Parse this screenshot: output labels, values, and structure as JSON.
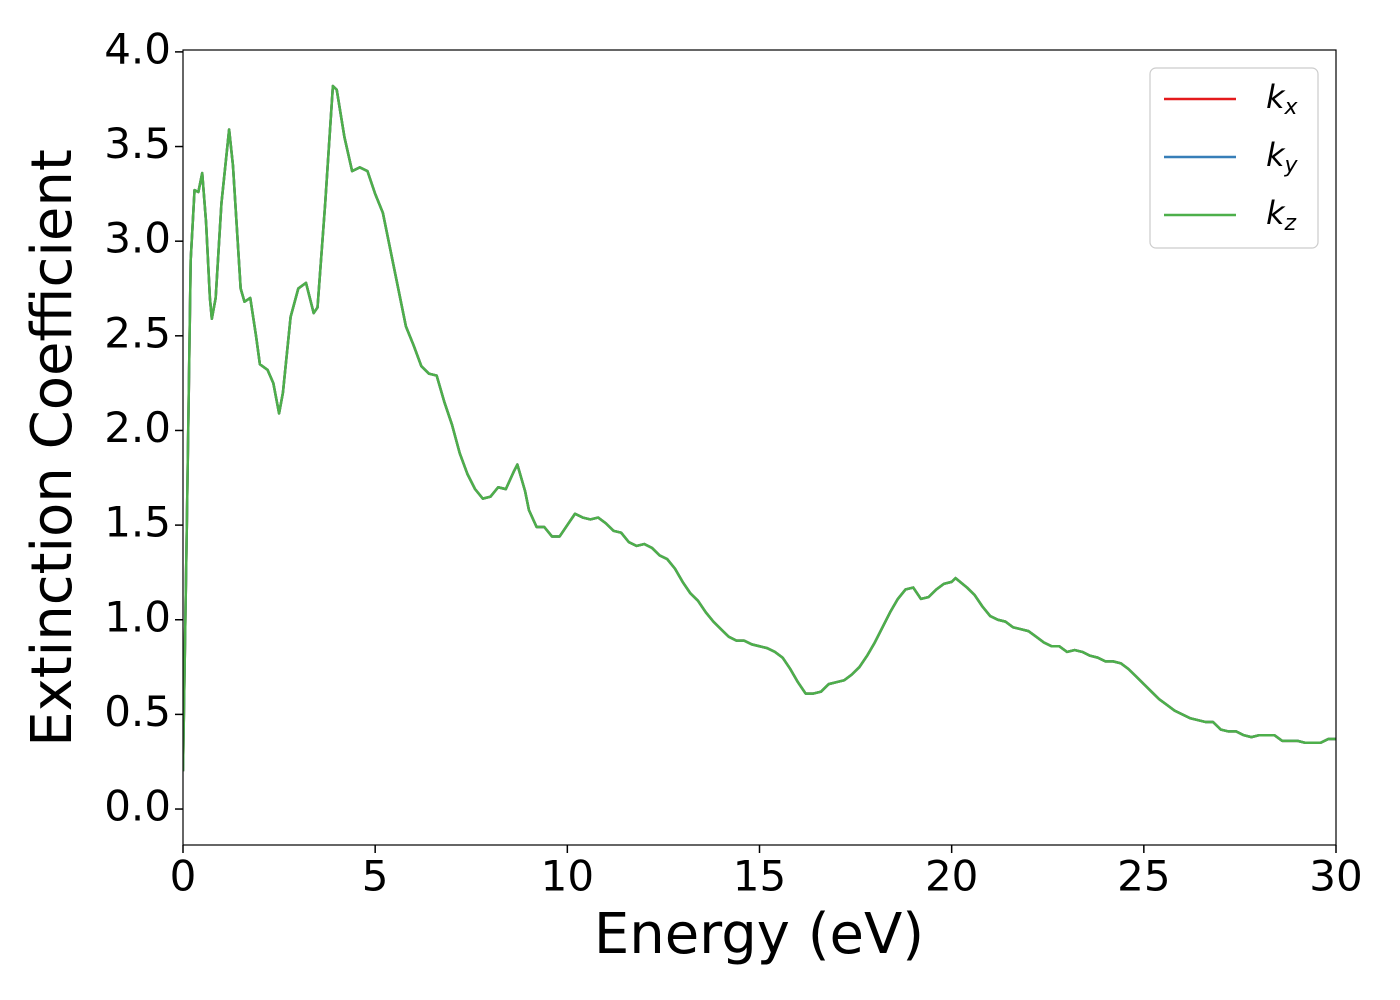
{
  "chart_data": {
    "type": "line",
    "xlabel": "Energy (eV)",
    "ylabel": "Extinction Coefficient",
    "xlim": [
      0,
      30
    ],
    "ylim": [
      -0.19,
      4.01
    ],
    "xticks": [
      0,
      5,
      10,
      15,
      20,
      25,
      30
    ],
    "yticks": [
      {
        "value": 0,
        "label": "0.0"
      },
      {
        "value": 0.5,
        "label": "0.5"
      },
      {
        "value": 1,
        "label": "1.0"
      },
      {
        "value": 1.5,
        "label": "1.5"
      },
      {
        "value": 2,
        "label": "2.0"
      },
      {
        "value": 2.5,
        "label": "2.5"
      },
      {
        "value": 3,
        "label": "3.0"
      },
      {
        "value": 3.5,
        "label": "3.5"
      },
      {
        "value": 4,
        "label": "4.0"
      }
    ],
    "legend": "upper right",
    "x": [
      0,
      0.1,
      0.2,
      0.3,
      0.4,
      0.5,
      0.6,
      0.7,
      0.75,
      0.85,
      1.0,
      1.2,
      1.3,
      1.5,
      1.6,
      1.75,
      1.9,
      2.0,
      2.2,
      2.35,
      2.5,
      2.6,
      2.8,
      3.0,
      3.2,
      3.4,
      3.5,
      3.7,
      3.9,
      4.0,
      4.2,
      4.4,
      4.6,
      4.8,
      5.0,
      5.2,
      5.4,
      5.6,
      5.8,
      6.0,
      6.2,
      6.4,
      6.6,
      6.8,
      7.0,
      7.2,
      7.4,
      7.6,
      7.8,
      8.0,
      8.2,
      8.4,
      8.6,
      8.7,
      8.9,
      9.0,
      9.2,
      9.4,
      9.6,
      9.8,
      10.0,
      10.2,
      10.4,
      10.6,
      10.8,
      11.0,
      11.2,
      11.4,
      11.6,
      11.8,
      12.0,
      12.2,
      12.4,
      12.6,
      12.8,
      13.0,
      13.2,
      13.4,
      13.6,
      13.8,
      14.0,
      14.2,
      14.4,
      14.6,
      14.8,
      15.0,
      15.2,
      15.4,
      15.6,
      15.8,
      16.0,
      16.2,
      16.4,
      16.6,
      16.8,
      17.0,
      17.2,
      17.4,
      17.6,
      17.8,
      18.0,
      18.2,
      18.4,
      18.6,
      18.8,
      19.0,
      19.2,
      19.4,
      19.6,
      19.8,
      20.0,
      20.1,
      20.4,
      20.6,
      20.8,
      21.0,
      21.2,
      21.4,
      21.6,
      21.8,
      22.0,
      22.2,
      22.4,
      22.6,
      22.8,
      23.0,
      23.2,
      23.4,
      23.6,
      23.8,
      24.0,
      24.2,
      24.4,
      24.6,
      24.8,
      25.0,
      25.2,
      25.4,
      25.6,
      25.8,
      26.0,
      26.2,
      26.4,
      26.6,
      26.8,
      27.0,
      27.2,
      27.4,
      27.6,
      27.8,
      28.0,
      28.2,
      28.4,
      28.6,
      28.8,
      29.0,
      29.2,
      29.4,
      29.6,
      29.8,
      30.0
    ],
    "series": [
      {
        "name": "kx",
        "color": "#e41a1c",
        "values": [
          0.2,
          1.5,
          2.9,
          3.27,
          3.26,
          3.36,
          3.1,
          2.7,
          2.59,
          2.7,
          3.2,
          3.59,
          3.4,
          2.75,
          2.68,
          2.7,
          2.5,
          2.35,
          2.32,
          2.25,
          2.09,
          2.2,
          2.6,
          2.75,
          2.78,
          2.62,
          2.65,
          3.2,
          3.82,
          3.8,
          3.55,
          3.37,
          3.39,
          3.37,
          3.25,
          3.15,
          2.95,
          2.75,
          2.55,
          2.45,
          2.34,
          2.3,
          2.29,
          2.15,
          2.03,
          1.88,
          1.77,
          1.69,
          1.64,
          1.65,
          1.7,
          1.69,
          1.78,
          1.82,
          1.68,
          1.58,
          1.49,
          1.49,
          1.44,
          1.44,
          1.5,
          1.56,
          1.54,
          1.53,
          1.54,
          1.51,
          1.47,
          1.46,
          1.41,
          1.39,
          1.4,
          1.38,
          1.34,
          1.32,
          1.27,
          1.2,
          1.14,
          1.1,
          1.04,
          0.99,
          0.95,
          0.91,
          0.89,
          0.89,
          0.87,
          0.86,
          0.85,
          0.83,
          0.8,
          0.74,
          0.67,
          0.61,
          0.61,
          0.62,
          0.66,
          0.67,
          0.68,
          0.71,
          0.75,
          0.81,
          0.88,
          0.96,
          1.04,
          1.11,
          1.16,
          1.17,
          1.11,
          1.12,
          1.16,
          1.19,
          1.2,
          1.22,
          1.17,
          1.13,
          1.07,
          1.02,
          1.0,
          0.99,
          0.96,
          0.95,
          0.94,
          0.91,
          0.88,
          0.86,
          0.86,
          0.83,
          0.84,
          0.83,
          0.81,
          0.8,
          0.78,
          0.78,
          0.77,
          0.74,
          0.7,
          0.66,
          0.62,
          0.58,
          0.55,
          0.52,
          0.5,
          0.48,
          0.47,
          0.46,
          0.46,
          0.42,
          0.41,
          0.41,
          0.39,
          0.38,
          0.39,
          0.39,
          0.39,
          0.36,
          0.36,
          0.36,
          0.35,
          0.35,
          0.35,
          0.37,
          0.37
        ]
      },
      {
        "name": "ky",
        "color": "#377eb8",
        "values": [
          0.2,
          1.5,
          2.9,
          3.27,
          3.26,
          3.36,
          3.1,
          2.7,
          2.59,
          2.7,
          3.2,
          3.59,
          3.4,
          2.75,
          2.68,
          2.7,
          2.5,
          2.35,
          2.32,
          2.25,
          2.09,
          2.2,
          2.6,
          2.75,
          2.78,
          2.62,
          2.65,
          3.2,
          3.82,
          3.8,
          3.55,
          3.37,
          3.39,
          3.37,
          3.25,
          3.15,
          2.95,
          2.75,
          2.55,
          2.45,
          2.34,
          2.3,
          2.29,
          2.15,
          2.03,
          1.88,
          1.77,
          1.69,
          1.64,
          1.65,
          1.7,
          1.69,
          1.78,
          1.82,
          1.68,
          1.58,
          1.49,
          1.49,
          1.44,
          1.44,
          1.5,
          1.56,
          1.54,
          1.53,
          1.54,
          1.51,
          1.47,
          1.46,
          1.41,
          1.39,
          1.4,
          1.38,
          1.34,
          1.32,
          1.27,
          1.2,
          1.14,
          1.1,
          1.04,
          0.99,
          0.95,
          0.91,
          0.89,
          0.89,
          0.87,
          0.86,
          0.85,
          0.83,
          0.8,
          0.74,
          0.67,
          0.61,
          0.61,
          0.62,
          0.66,
          0.67,
          0.68,
          0.71,
          0.75,
          0.81,
          0.88,
          0.96,
          1.04,
          1.11,
          1.16,
          1.17,
          1.11,
          1.12,
          1.16,
          1.19,
          1.2,
          1.22,
          1.17,
          1.13,
          1.07,
          1.02,
          1.0,
          0.99,
          0.96,
          0.95,
          0.94,
          0.91,
          0.88,
          0.86,
          0.86,
          0.83,
          0.84,
          0.83,
          0.81,
          0.8,
          0.78,
          0.78,
          0.77,
          0.74,
          0.7,
          0.66,
          0.62,
          0.58,
          0.55,
          0.52,
          0.5,
          0.48,
          0.47,
          0.46,
          0.46,
          0.42,
          0.41,
          0.41,
          0.39,
          0.38,
          0.39,
          0.39,
          0.39,
          0.36,
          0.36,
          0.36,
          0.35,
          0.35,
          0.35,
          0.37,
          0.37
        ]
      },
      {
        "name": "kz",
        "color": "#4daf4a",
        "values": [
          0.2,
          1.5,
          2.9,
          3.27,
          3.26,
          3.36,
          3.1,
          2.7,
          2.59,
          2.7,
          3.2,
          3.59,
          3.4,
          2.75,
          2.68,
          2.7,
          2.5,
          2.35,
          2.32,
          2.25,
          2.09,
          2.2,
          2.6,
          2.75,
          2.78,
          2.62,
          2.65,
          3.2,
          3.82,
          3.8,
          3.55,
          3.37,
          3.39,
          3.37,
          3.25,
          3.15,
          2.95,
          2.75,
          2.55,
          2.45,
          2.34,
          2.3,
          2.29,
          2.15,
          2.03,
          1.88,
          1.77,
          1.69,
          1.64,
          1.65,
          1.7,
          1.69,
          1.78,
          1.82,
          1.68,
          1.58,
          1.49,
          1.49,
          1.44,
          1.44,
          1.5,
          1.56,
          1.54,
          1.53,
          1.54,
          1.51,
          1.47,
          1.46,
          1.41,
          1.39,
          1.4,
          1.38,
          1.34,
          1.32,
          1.27,
          1.2,
          1.14,
          1.1,
          1.04,
          0.99,
          0.95,
          0.91,
          0.89,
          0.89,
          0.87,
          0.86,
          0.85,
          0.83,
          0.8,
          0.74,
          0.67,
          0.61,
          0.61,
          0.62,
          0.66,
          0.67,
          0.68,
          0.71,
          0.75,
          0.81,
          0.88,
          0.96,
          1.04,
          1.11,
          1.16,
          1.17,
          1.11,
          1.12,
          1.16,
          1.19,
          1.2,
          1.22,
          1.17,
          1.13,
          1.07,
          1.02,
          1.0,
          0.99,
          0.96,
          0.95,
          0.94,
          0.91,
          0.88,
          0.86,
          0.86,
          0.83,
          0.84,
          0.83,
          0.81,
          0.8,
          0.78,
          0.78,
          0.77,
          0.74,
          0.7,
          0.66,
          0.62,
          0.58,
          0.55,
          0.52,
          0.5,
          0.48,
          0.47,
          0.46,
          0.46,
          0.42,
          0.41,
          0.41,
          0.39,
          0.38,
          0.39,
          0.39,
          0.39,
          0.36,
          0.36,
          0.36,
          0.35,
          0.35,
          0.35,
          0.37,
          0.37
        ]
      }
    ]
  }
}
